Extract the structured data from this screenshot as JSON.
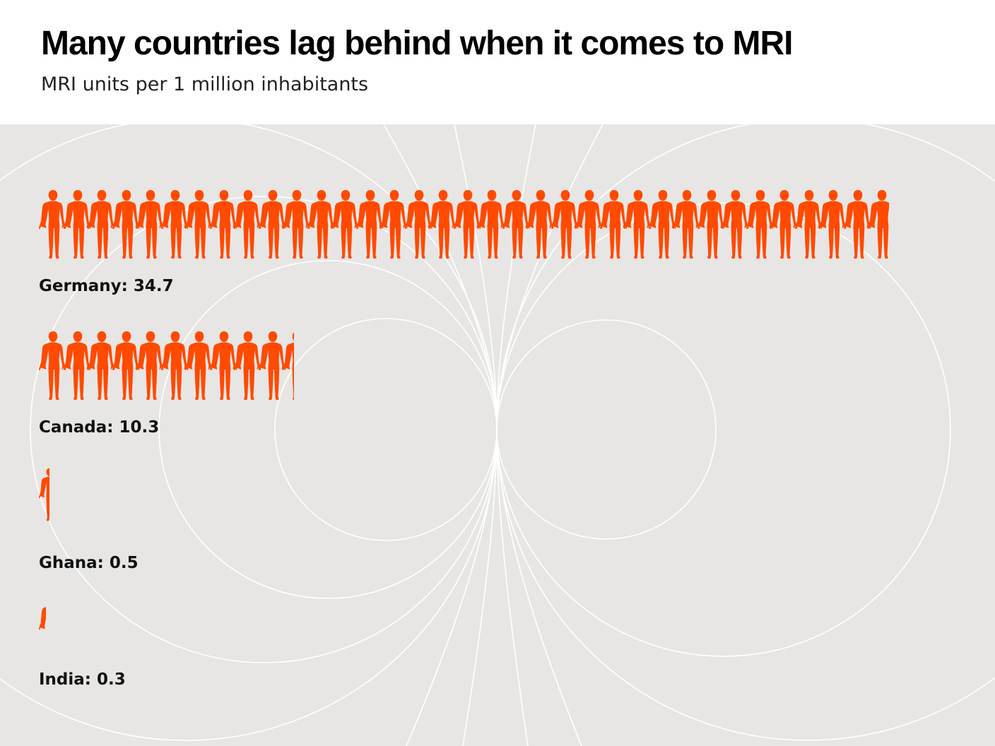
{
  "title": "Many countries lag behind when it comes to MRI",
  "subtitle": "MRI units per 1 million inhabitants",
  "chart_data": {
    "type": "pictogram",
    "title": "Many countries lag behind when it comes to MRI",
    "subtitle": "MRI units per 1 million inhabitants",
    "unit": "MRI units per 1 million inhabitants",
    "icon": "person-icon",
    "colors": {
      "icon": "#ff4a00",
      "background": "#e7e6e4",
      "lines": "#ffffff"
    },
    "categories": [
      "Germany",
      "Canada",
      "Ghana",
      "India"
    ],
    "values": [
      34.7,
      10.3,
      0.5,
      0.3
    ],
    "labels": [
      "Germany: 34.7",
      "Canada: 10.3",
      "Ghana: 0.5",
      "India: 0.3"
    ]
  }
}
